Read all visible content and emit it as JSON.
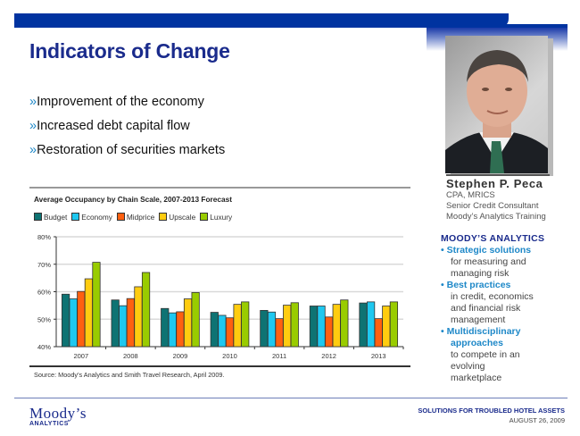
{
  "slide": {
    "title": "Indicators of Change",
    "bullet_marker": "»",
    "bullets": [
      "Improvement of the economy",
      "Increased debt capital flow",
      "Restoration of securities markets"
    ]
  },
  "presenter": {
    "name": "Stephen P. Peca",
    "credentials": "CPA, MRICS",
    "role": "Senior Credit Consultant",
    "organization": "Moody’s Analytics Training"
  },
  "sidebar": {
    "heading": "MOODY’S ANALYTICS",
    "items": [
      {
        "title": "Strategic solutions",
        "text": [
          "for measuring and",
          "managing risk"
        ]
      },
      {
        "title": "Best practices",
        "text": [
          "in credit, economics",
          "and financial risk",
          "management"
        ]
      },
      {
        "title": "Multidisciplinary approaches",
        "text": [
          "to compete in an",
          "evolving",
          "marketplace"
        ]
      }
    ],
    "bullet": "•"
  },
  "footer": {
    "logo_main": "Moody’s",
    "logo_sub": "ANALYTICS",
    "event_title": "SOLUTIONS FOR TROUBLED HOTEL ASSETS",
    "event_date": "AUGUST 26, 2009"
  },
  "chart_data": {
    "type": "bar",
    "title": "Average Occupancy by Chain Scale, 2007-2013 Forecast",
    "xlabel": "",
    "ylabel": "",
    "categories": [
      "2007",
      "2008",
      "2009",
      "2010",
      "2011",
      "2012",
      "2013"
    ],
    "ylim": [
      40,
      80
    ],
    "yticks": [
      40,
      50,
      60,
      70,
      80
    ],
    "ytick_labels": [
      "40%",
      "50%",
      "60%",
      "70%",
      "80%"
    ],
    "grid": true,
    "legend_position": "top-left",
    "series": [
      {
        "name": "Budget",
        "color": "#0e7373",
        "values": [
          59.1,
          57.0,
          53.9,
          52.5,
          53.2,
          54.8,
          55.9
        ]
      },
      {
        "name": "Economy",
        "color": "#1ec8f0",
        "values": [
          57.4,
          54.9,
          52.3,
          51.4,
          52.6,
          54.8,
          56.3
        ]
      },
      {
        "name": "Midprice",
        "color": "#ff6010",
        "values": [
          60.1,
          57.5,
          52.7,
          50.5,
          50.2,
          50.8,
          50.2
        ]
      },
      {
        "name": "Upscale",
        "color": "#ffcc10",
        "values": [
          64.7,
          61.8,
          57.4,
          55.4,
          55.1,
          55.4,
          54.8
        ]
      },
      {
        "name": "Luxury",
        "color": "#99cc00",
        "values": [
          70.7,
          67.0,
          59.7,
          56.3,
          56.0,
          57.0,
          56.3
        ]
      }
    ],
    "source": "Source: Moody's Analytics and Smith Travel Research, April 2009."
  }
}
